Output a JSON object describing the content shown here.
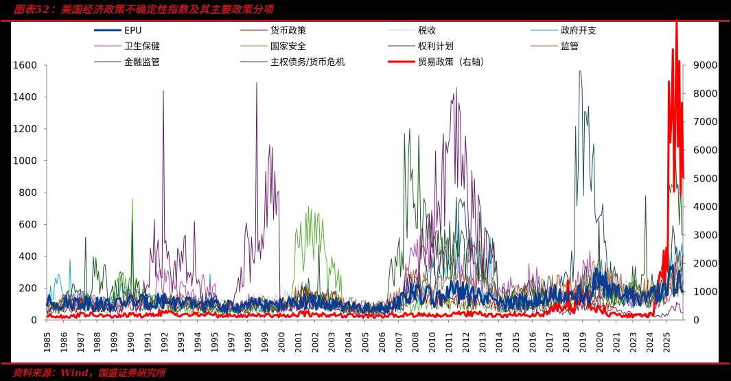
{
  "header": {
    "title": "图表52：美国经济政策不确定性指数及其主要政策分项"
  },
  "footer": {
    "source": "资料来源：Wind，国盛证券研究所"
  },
  "colors": {
    "frame_red": "#c0151c",
    "background": "#000000",
    "panel": "#ffffff"
  },
  "chart_data": {
    "type": "line",
    "title": "美国经济政策不确定性指数及其主要政策分项",
    "xlabel": "",
    "ylabel": "",
    "y_left": {
      "min": 0,
      "max": 1600,
      "ticks": [
        0,
        200,
        400,
        600,
        800,
        1000,
        1200,
        1400,
        1600
      ]
    },
    "y_right": {
      "min": 0,
      "max": 9000,
      "ticks": [
        0,
        1000,
        2000,
        3000,
        4000,
        5000,
        6000,
        7000,
        8000,
        9000
      ]
    },
    "x_tick_labels": [
      "1985",
      "1986",
      "1987",
      "1988",
      "1989",
      "1990",
      "1991",
      "1992",
      "1993",
      "1994",
      "1995",
      "1997",
      "1998",
      "1999",
      "2000",
      "2001",
      "2002",
      "2003",
      "2004",
      "2005",
      "2006",
      "2007",
      "2008",
      "2010",
      "2011",
      "2012",
      "2013",
      "2014",
      "2015",
      "2016",
      "2017",
      "2018",
      "2019",
      "2020",
      "2021",
      "2023",
      "2024",
      "2025"
    ],
    "grid": false,
    "legend_position": "top",
    "x": [
      1985,
      1986,
      1987,
      1988,
      1989,
      1990,
      1991,
      1992,
      1993,
      1994,
      1995,
      1996,
      1997,
      1998,
      1999,
      2000,
      2001,
      2002,
      2003,
      2004,
      2005,
      2006,
      2007,
      2008,
      2009,
      2010,
      2011,
      2012,
      2013,
      2014,
      2015,
      2016,
      2017,
      2018,
      2019,
      2020,
      2021,
      2022,
      2023,
      2024,
      2025
    ],
    "series": [
      {
        "name": "EPU",
        "axis": "left",
        "color": "#0b3d91",
        "width": 3,
        "values": [
          110,
          105,
          115,
          100,
          95,
          120,
          110,
          125,
          110,
          100,
          95,
          85,
          80,
          100,
          90,
          95,
          120,
          110,
          90,
          80,
          75,
          70,
          110,
          160,
          150,
          140,
          170,
          160,
          130,
          100,
          110,
          120,
          160,
          140,
          150,
          250,
          180,
          150,
          140,
          150,
          260
        ]
      },
      {
        "name": "货币政策",
        "axis": "left",
        "color": "#c00000",
        "width": 1,
        "values": [
          60,
          80,
          100,
          90,
          70,
          120,
          90,
          110,
          100,
          90,
          70,
          60,
          65,
          90,
          70,
          80,
          180,
          130,
          110,
          70,
          60,
          50,
          80,
          150,
          140,
          120,
          110,
          120,
          100,
          70,
          90,
          100,
          90,
          110,
          140,
          120,
          90,
          180,
          140,
          120,
          260
        ]
      },
      {
        "name": "税收",
        "axis": "left",
        "color": "#bdd7ee",
        "width": 1,
        "values": [
          130,
          120,
          140,
          110,
          100,
          130,
          120,
          140,
          130,
          120,
          110,
          100,
          90,
          120,
          110,
          130,
          160,
          150,
          140,
          110,
          100,
          90,
          110,
          190,
          180,
          170,
          180,
          200,
          160,
          120,
          130,
          160,
          180,
          170,
          180,
          250,
          210,
          190,
          170,
          180,
          300
        ]
      },
      {
        "name": "政府开支",
        "axis": "left",
        "color": "#1f9fd6",
        "width": 1,
        "values": [
          150,
          380,
          130,
          100,
          90,
          540,
          120,
          110,
          100,
          90,
          290,
          80,
          70,
          90,
          80,
          90,
          120,
          100,
          90,
          70,
          60,
          60,
          90,
          170,
          160,
          180,
          620,
          200,
          520,
          90,
          120,
          110,
          140,
          130,
          150,
          300,
          170,
          140,
          130,
          140,
          360
        ]
      },
      {
        "name": "卫生保健",
        "axis": "left",
        "color": "#b04fb0",
        "width": 1,
        "values": [
          90,
          120,
          140,
          110,
          80,
          150,
          100,
          230,
          190,
          140,
          210,
          90,
          80,
          120,
          100,
          90,
          120,
          110,
          90,
          80,
          70,
          80,
          110,
          340,
          500,
          420,
          300,
          380,
          240,
          200,
          160,
          250,
          150,
          120,
          200,
          640,
          200,
          130,
          120,
          110,
          200
        ]
      },
      {
        "name": "国家安全",
        "axis": "left",
        "color": "#5ab034",
        "width": 1,
        "values": [
          70,
          80,
          90,
          80,
          70,
          760,
          150,
          90,
          70,
          60,
          60,
          50,
          50,
          70,
          60,
          60,
          530,
          590,
          300,
          80,
          60,
          50,
          70,
          90,
          100,
          90,
          110,
          90,
          80,
          60,
          70,
          80,
          90,
          80,
          90,
          120,
          110,
          200,
          130,
          120,
          260
        ]
      },
      {
        "name": "权利计划",
        "axis": "left",
        "color": "#1f4e5f",
        "width": 1,
        "values": [
          80,
          90,
          100,
          90,
          80,
          110,
          100,
          120,
          110,
          100,
          130,
          90,
          80,
          100,
          90,
          100,
          120,
          110,
          100,
          80,
          70,
          80,
          100,
          200,
          280,
          300,
          580,
          500,
          450,
          160,
          150,
          190,
          200,
          180,
          1120,
          790,
          300,
          160,
          140,
          130,
          420
        ]
      },
      {
        "name": "监管",
        "axis": "left",
        "color": "#c0622a",
        "width": 1,
        "values": [
          100,
          110,
          120,
          100,
          90,
          140,
          110,
          130,
          120,
          110,
          100,
          90,
          80,
          110,
          100,
          110,
          150,
          140,
          130,
          100,
          90,
          80,
          120,
          230,
          220,
          210,
          230,
          250,
          200,
          130,
          150,
          180,
          200,
          190,
          210,
          270,
          230,
          190,
          180,
          170,
          320
        ]
      },
      {
        "name": "金融监管",
        "axis": "left",
        "color": "#1b5e20",
        "width": 1,
        "values": [
          90,
          100,
          520,
          280,
          120,
          620,
          140,
          110,
          90,
          80,
          70,
          60,
          60,
          80,
          70,
          80,
          130,
          470,
          150,
          70,
          60,
          50,
          260,
          880,
          600,
          450,
          430,
          360,
          300,
          120,
          140,
          150,
          130,
          120,
          160,
          620,
          150,
          120,
          780,
          150,
          750
        ]
      },
      {
        "name": "主权债务/货币危机",
        "axis": "left",
        "color": "#6b1f6b",
        "width": 1,
        "values": [
          60,
          80,
          100,
          80,
          60,
          90,
          70,
          1440,
          280,
          620,
          120,
          90,
          80,
          1490,
          920,
          100,
          80,
          90,
          80,
          60,
          50,
          40,
          60,
          180,
          400,
          800,
          1040,
          710,
          450,
          90,
          70,
          90,
          60,
          50,
          70,
          280,
          60,
          40,
          30,
          20,
          80
        ]
      },
      {
        "name": "贸易政策（右轴）",
        "axis": "right",
        "color": "#ff0000",
        "width": 3,
        "values": [
          150,
          120,
          200,
          160,
          120,
          180,
          150,
          250,
          220,
          180,
          200,
          160,
          140,
          180,
          170,
          160,
          220,
          200,
          180,
          150,
          140,
          120,
          160,
          200,
          180,
          170,
          210,
          220,
          180,
          150,
          200,
          180,
          200,
          1400,
          800,
          400,
          200,
          150,
          160,
          250,
          8000
        ]
      }
    ]
  },
  "legend": {
    "items": [
      {
        "label": "EPU",
        "color": "#0b3d91",
        "width": 3
      },
      {
        "label": "货币政策",
        "color": "#c00000",
        "width": 1
      },
      {
        "label": "税收",
        "color": "#bdd7ee",
        "width": 1
      },
      {
        "label": "政府开支",
        "color": "#1f9fd6",
        "width": 1
      },
      {
        "label": "卫生保健",
        "color": "#b04fb0",
        "width": 1
      },
      {
        "label": "国家安全",
        "color": "#5ab034",
        "width": 1
      },
      {
        "label": "权利计划",
        "color": "#1f4e5f",
        "width": 1
      },
      {
        "label": "监管",
        "color": "#c0622a",
        "width": 1
      },
      {
        "label": "金融监管",
        "color": "#1b5e20",
        "width": 1
      },
      {
        "label": "主权债务/货币危机",
        "color": "#6b1f6b",
        "width": 1
      },
      {
        "label": "贸易政策（右轴）",
        "color": "#ff0000",
        "width": 3
      }
    ]
  }
}
